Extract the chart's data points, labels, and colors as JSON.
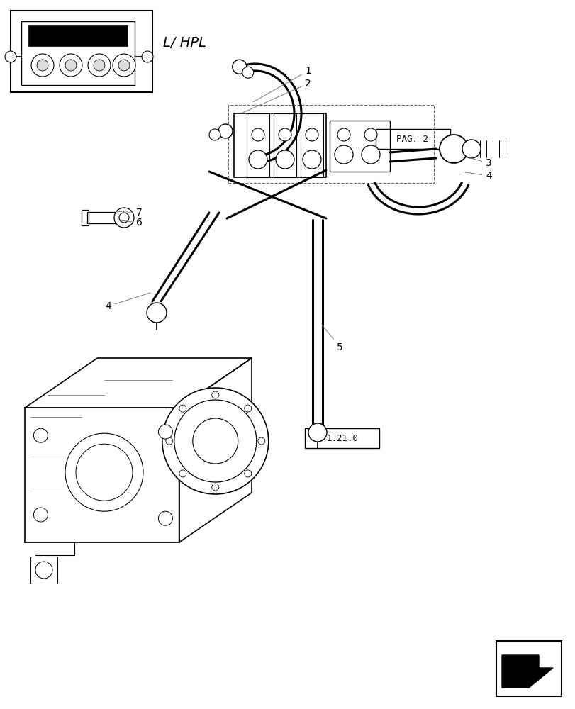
{
  "bg_color": "#ffffff",
  "line_color": "#000000",
  "label_color": "#444444",
  "fig_width": 8.12,
  "fig_height": 10.0,
  "label_L_HPL": "L/ HPL",
  "label_PAG2": "PAG. 2",
  "label_1210": "1.21.0"
}
